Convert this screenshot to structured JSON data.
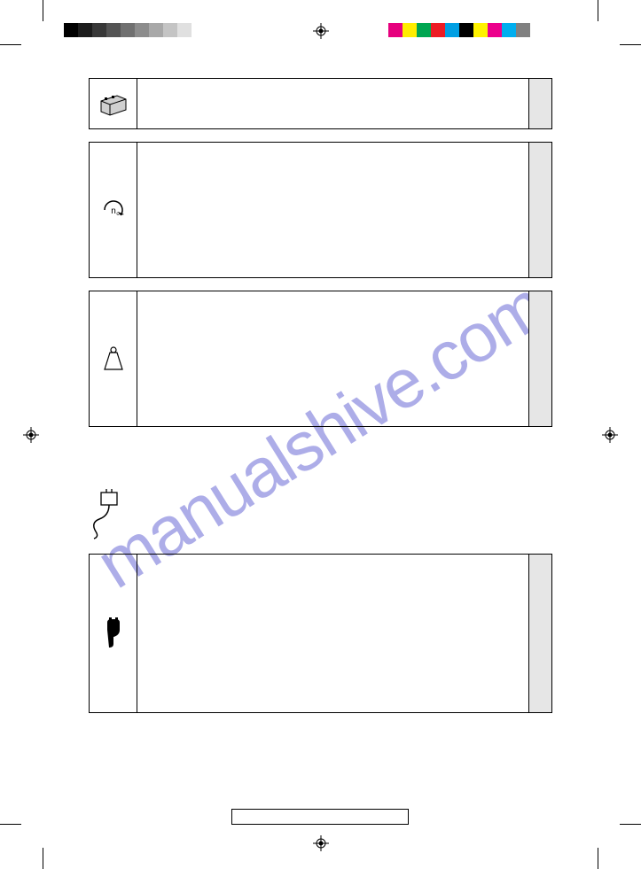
{
  "watermark": "manualshive.com",
  "gray_swatches": [
    "#000000",
    "#1c1c1c",
    "#383838",
    "#545454",
    "#707070",
    "#8c8c8c",
    "#a8a8a8",
    "#c4c4c4",
    "#e0e0e0",
    "#ffffff"
  ],
  "color_swatches": [
    "#e6007e",
    "#ffed00",
    "#00a651",
    "#ed1c24",
    "#009fe3",
    "#000000",
    "#fff200",
    "#ec008c",
    "#00aeef",
    "#808080"
  ],
  "end_cell_bg": "#e6e6e6",
  "page_bg": "#ffffff",
  "watermark_color": "#6b6bd6",
  "rows": [
    {
      "icon": "battery",
      "height": "h-small"
    },
    {
      "icon": "rpm",
      "height": "h-med"
    },
    {
      "icon": "weight",
      "height": "h-med2"
    },
    {
      "icon": "plug",
      "height": "h-large",
      "gap_before": true
    }
  ]
}
